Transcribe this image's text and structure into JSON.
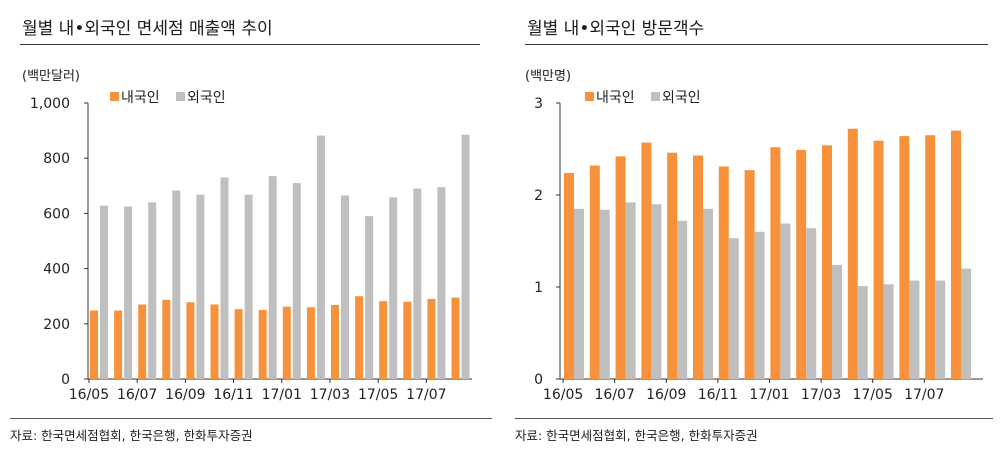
{
  "chart_data": [
    {
      "type": "bar",
      "title": "월별 내•외국인 면세점 매출액 추이",
      "unit_label": "(백만달러)",
      "ylim": [
        0,
        1000
      ],
      "yticks": [
        "0",
        "200",
        "400",
        "600",
        "800",
        "1,000"
      ],
      "ytick_values": [
        0,
        200,
        400,
        600,
        800,
        1000
      ],
      "categories": [
        "16/05",
        "16/06",
        "16/07",
        "16/08",
        "16/09",
        "16/10",
        "16/11",
        "16/12",
        "17/01",
        "17/02",
        "17/03",
        "17/04",
        "17/05",
        "17/06",
        "17/07",
        "17/08"
      ],
      "xtick_labels": [
        "16/05",
        "16/07",
        "16/09",
        "16/11",
        "17/01",
        "17/03",
        "17/05",
        "17/07"
      ],
      "series": [
        {
          "name": "내국인",
          "color": "#f7923a",
          "values": [
            248,
            248,
            270,
            287,
            278,
            270,
            253,
            250,
            262,
            260,
            268,
            300,
            282,
            280,
            290,
            295
          ]
        },
        {
          "name": "외국인",
          "color": "#bfbfbf",
          "values": [
            628,
            625,
            640,
            683,
            668,
            730,
            668,
            735,
            710,
            882,
            665,
            590,
            658,
            690,
            695,
            885
          ]
        }
      ],
      "legend": "top-left",
      "grid": false,
      "source": "자료: 한국면세점협회, 한국은행, 한화투자증권"
    },
    {
      "type": "bar",
      "title": "월별 내•외국인 방문객수",
      "unit_label": "(백만명)",
      "ylim": [
        0,
        3
      ],
      "yticks": [
        "0",
        "1",
        "2",
        "3"
      ],
      "ytick_values": [
        0,
        1,
        2,
        3
      ],
      "categories": [
        "16/05",
        "16/06",
        "16/07",
        "16/08",
        "16/09",
        "16/10",
        "16/11",
        "16/12",
        "17/01",
        "17/02",
        "17/03",
        "17/04",
        "17/05",
        "17/06",
        "17/07",
        "17/08"
      ],
      "xtick_labels": [
        "16/05",
        "16/07",
        "16/09",
        "16/11",
        "17/01",
        "17/03",
        "17/05",
        "17/07"
      ],
      "series": [
        {
          "name": "내국인",
          "color": "#f7923a",
          "values": [
            2.24,
            2.32,
            2.42,
            2.57,
            2.46,
            2.43,
            2.31,
            2.27,
            2.52,
            2.49,
            2.54,
            2.72,
            2.59,
            2.64,
            2.65,
            2.7
          ]
        },
        {
          "name": "외국인",
          "color": "#bfbfbf",
          "values": [
            1.85,
            1.84,
            1.92,
            1.9,
            1.72,
            1.85,
            1.53,
            1.6,
            1.69,
            1.64,
            1.24,
            1.01,
            1.03,
            1.07,
            1.07,
            1.2
          ]
        }
      ],
      "legend": "top-left",
      "grid": false,
      "source": "자료: 한국면세점협회, 한국은행, 한화투자증권"
    }
  ]
}
